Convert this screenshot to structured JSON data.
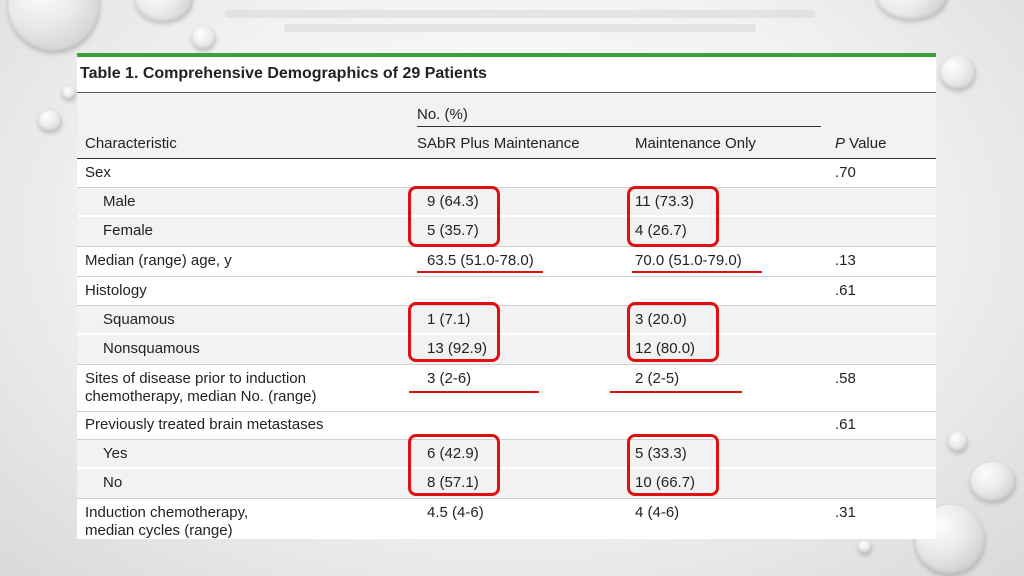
{
  "table": {
    "title": "Table 1. Comprehensive Demographics of 29 Patients",
    "header": {
      "group_label": "No. (%)",
      "col_characteristic": "Characteristic",
      "col_sabr": "SAbR Plus Maintenance",
      "col_maintenance": "Maintenance Only",
      "col_p_italic": "P",
      "col_p_rest": " Value"
    },
    "rows": {
      "sex": {
        "label": "Sex",
        "p": ".70"
      },
      "male": {
        "label": "Male",
        "sabr": "9 (64.3)",
        "maint": "11 (73.3)"
      },
      "female": {
        "label": "Female",
        "sabr": "5 (35.7)",
        "maint": "4 (26.7)"
      },
      "age": {
        "label": "Median (range) age, y",
        "sabr": "63.5 (51.0-78.0)",
        "maint": "70.0 (51.0-79.0)",
        "p": ".13"
      },
      "histology": {
        "label": "Histology",
        "p": ".61"
      },
      "squamous": {
        "label": "Squamous",
        "sabr": "1 (7.1)",
        "maint": "3 (20.0)"
      },
      "nonsquamous": {
        "label": "Nonsquamous",
        "sabr": "13 (92.9)",
        "maint": "12 (80.0)"
      },
      "sites": {
        "label_line1": "Sites of disease prior to induction",
        "label_line2": "chemotherapy, median No. (range)",
        "sabr": "3 (2-6)",
        "maint": "2 (2-5)",
        "p": ".58"
      },
      "brain": {
        "label": "Previously treated brain metastases",
        "p": ".61"
      },
      "yes": {
        "label": "Yes",
        "sabr": "6 (42.9)",
        "maint": "5 (33.3)"
      },
      "no": {
        "label": "No",
        "sabr": "8 (57.1)",
        "maint": "10 (66.7)"
      },
      "induction": {
        "label_line1": "Induction chemotherapy,",
        "label_line2": "median cycles (range)",
        "sabr": "4.5 (4-6)",
        "maint": "4 (4-6)",
        "p": ".31"
      }
    }
  },
  "colors": {
    "accent_green": "#3aa03a",
    "highlight_red": "#e01010",
    "shade_gray": "#f2f2f2"
  }
}
